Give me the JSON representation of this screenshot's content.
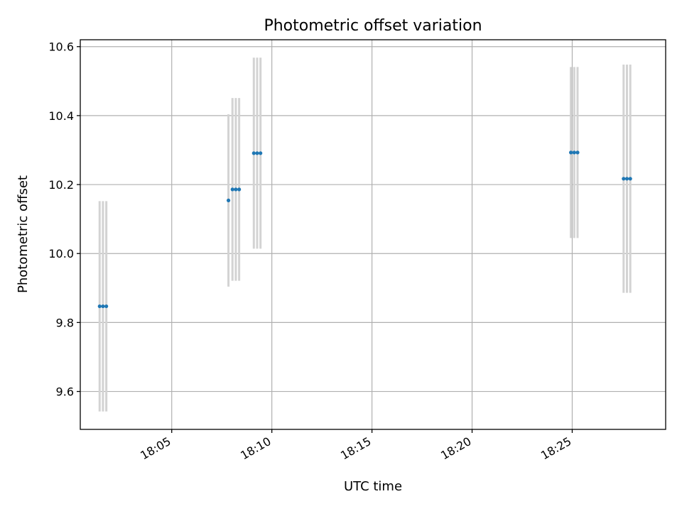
{
  "chart_data": {
    "type": "scatter",
    "title": "Photometric offset variation",
    "xlabel": "UTC time",
    "ylabel": "Photometric offset",
    "x_tick_labels": [
      "18:05",
      "18:10",
      "18:15",
      "18:20",
      "18:25"
    ],
    "x_tick_values": [
      "18:05",
      "18:10",
      "18:15",
      "18:20",
      "18:25"
    ],
    "y_tick_labels": [
      "9.6",
      "9.8",
      "10.0",
      "10.2",
      "10.4",
      "10.6"
    ],
    "y_tick_values": [
      9.6,
      9.8,
      10.0,
      10.2,
      10.4,
      10.6
    ],
    "xlim": [
      "18:00:26",
      "18:29:40"
    ],
    "ylim": [
      9.49,
      10.62
    ],
    "grid": true,
    "series": [
      {
        "marker": "point",
        "error_bars": "vertical",
        "points": [
          {
            "x": "18:01:24",
            "y": 9.847,
            "err": 0.305
          },
          {
            "x": "18:01:34",
            "y": 9.847,
            "err": 0.305
          },
          {
            "x": "18:01:44",
            "y": 9.847,
            "err": 0.305
          },
          {
            "x": "18:07:50",
            "y": 10.154,
            "err": 0.25
          },
          {
            "x": "18:08:02",
            "y": 10.186,
            "err": 0.265
          },
          {
            "x": "18:08:12",
            "y": 10.186,
            "err": 0.265
          },
          {
            "x": "18:08:22",
            "y": 10.186,
            "err": 0.265
          },
          {
            "x": "18:09:06",
            "y": 10.291,
            "err": 0.277
          },
          {
            "x": "18:09:16",
            "y": 10.291,
            "err": 0.277
          },
          {
            "x": "18:09:26",
            "y": 10.291,
            "err": 0.277
          },
          {
            "x": "18:24:56",
            "y": 10.293,
            "err": 0.248
          },
          {
            "x": "18:25:06",
            "y": 10.293,
            "err": 0.248
          },
          {
            "x": "18:25:16",
            "y": 10.293,
            "err": 0.248
          },
          {
            "x": "18:27:34",
            "y": 10.217,
            "err": 0.331
          },
          {
            "x": "18:27:44",
            "y": 10.217,
            "err": 0.331
          },
          {
            "x": "18:27:54",
            "y": 10.217,
            "err": 0.331
          }
        ]
      }
    ],
    "colors": {
      "marker": "#1f77b4",
      "error_bar": "#d3d3d3",
      "grid": "#b0b0b0"
    }
  }
}
